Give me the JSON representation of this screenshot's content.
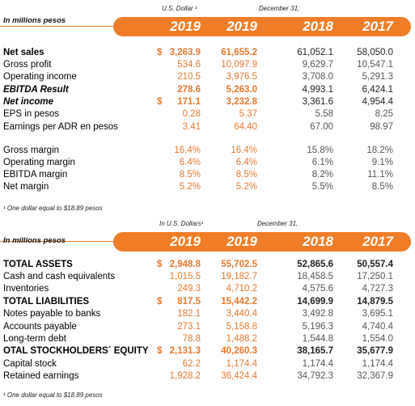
{
  "tables": [
    {
      "unit_header": "In millions pesos",
      "currency_header": "U.S. Dollar ¹",
      "date_header": "December 31,",
      "years": [
        "2019",
        "2019",
        "2018",
        "2017"
      ],
      "rows": [
        {
          "label": "Net sales",
          "currency": "$",
          "values": [
            "3,263.9",
            "61,655.2",
            "61,052.1",
            "58,050.0"
          ]
        },
        {
          "label": "Gross profit",
          "values": [
            "534.6",
            "10,097.9",
            "9,629.7",
            "10,547.1"
          ]
        },
        {
          "label": "Operating income",
          "values": [
            "210.5",
            "3,976.5",
            "3,708.0",
            "5,291.3"
          ]
        },
        {
          "label": "EBITDA Result",
          "values": [
            "278.6",
            "5,263.0",
            "4,993.1",
            "6,424.1"
          ]
        },
        {
          "label": "Net income",
          "currency": "$",
          "values": [
            "171.1",
            "3,232.8",
            "3,361.6",
            "4,954.4"
          ]
        },
        {
          "label": "EPS in pesos",
          "values": [
            "0.28",
            "5.37",
            "5.58",
            "8.25"
          ]
        },
        {
          "label": "Earnings per ADR en pesos",
          "values": [
            "3.41",
            "64.40",
            "67.00",
            "98.97"
          ]
        },
        {
          "label": "Gross margin",
          "values": [
            "16.4%",
            "16.4%",
            "15.8%",
            "18.2%"
          ]
        },
        {
          "label": "Operating margin",
          "values": [
            "6.4%",
            "6.4%",
            "6.1%",
            "9.1%"
          ]
        },
        {
          "label": "EBITDA margin",
          "values": [
            "8.5%",
            "8.5%",
            "8.2%",
            "11.1%"
          ]
        },
        {
          "label": "Net margin",
          "values": [
            "5.2%",
            "5.2%",
            "5.5%",
            "8.5%"
          ]
        }
      ],
      "footnote": "¹ One dollar equal to $18.89 pesos"
    },
    {
      "unit_header": "In millions pesos",
      "currency_header": "In U.S. Dollars¹",
      "date_header": "December 31,",
      "years": [
        "2019",
        "2019",
        "2018",
        "2017"
      ],
      "rows": [
        {
          "label": "TOTAL ASSETS",
          "currency": "$",
          "values": [
            "2,948.8",
            "55,702.5",
            "52,865.6",
            "50,557.4"
          ]
        },
        {
          "label": "Cash and cash equivalents",
          "values": [
            "1,015.5",
            "19,182.7",
            "18,458.5",
            "17,250.1"
          ]
        },
        {
          "label": "Inventories",
          "values": [
            "249.3",
            "4,710.2",
            "4,575.6",
            "4,727.3"
          ]
        },
        {
          "label": "TOTAL LIABILITIES",
          "currency": "$",
          "values": [
            "817.5",
            "15,442.2",
            "14,699.9",
            "14,879.5"
          ]
        },
        {
          "label": "Notes payable to banks",
          "values": [
            "182.1",
            "3,440.4",
            "3,492.8",
            "3,695.1"
          ]
        },
        {
          "label": "Accounts payable",
          "values": [
            "273.1",
            "5,158.8",
            "5,196.3",
            "4,740.4"
          ]
        },
        {
          "label": "Long-term debt",
          "values": [
            "78.8",
            "1,488.2",
            "1,544.8",
            "1,554.0"
          ]
        },
        {
          "label": "OTAL STOCKHOLDERS´ EQUITY",
          "currency": "$",
          "values": [
            "2,131.3",
            "40,260.3",
            "38,165.7",
            "35,677.9"
          ]
        },
        {
          "label": "Capital stock",
          "values": [
            "62.2",
            "1,174.4",
            "1,174.4",
            "1,174.4"
          ]
        },
        {
          "label": "Retained earnings",
          "values": [
            "1,928.2",
            "36,424.4",
            "34,792.3",
            "32,367.9"
          ]
        }
      ],
      "footnote": "¹ One dollar equal to $18.89 pesos"
    }
  ]
}
